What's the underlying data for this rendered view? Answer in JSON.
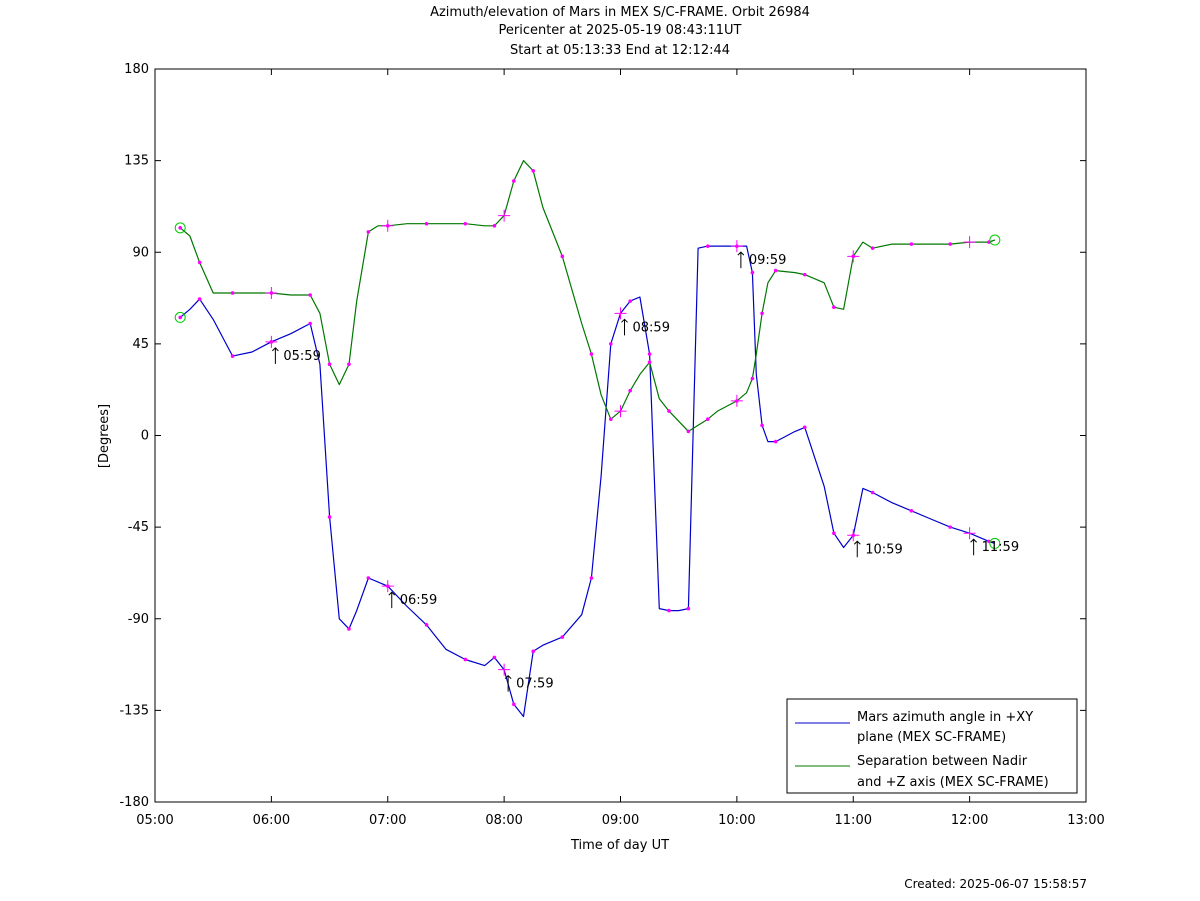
{
  "header": {
    "title": "Azimuth/elevation of Mars in MEX S/C-FRAME.  Orbit 26984",
    "subtitle1": "Pericenter at 2025-05-19 08:43:11UT",
    "subtitle2": "Start at 05:13:33 End at 12:12:44"
  },
  "footer": {
    "created": "Created: 2025-06-07 15:58:57"
  },
  "chart_data": {
    "type": "line",
    "xlabel": "Time of day UT",
    "ylabel": "[Degrees]",
    "xlim": [
      "05:00",
      "13:00"
    ],
    "ylim": [
      -180,
      180
    ],
    "xticks": [
      "05:00",
      "06:00",
      "07:00",
      "08:00",
      "09:00",
      "10:00",
      "11:00",
      "12:00",
      "13:00"
    ],
    "yticks": [
      180,
      135,
      90,
      45,
      0,
      -45,
      -90,
      -135,
      -180
    ],
    "grid": false,
    "legend_position": "bottom-right",
    "series": [
      {
        "name": "Mars azimuth angle in +XY plane (MEX SC-FRAME)",
        "legend_line1": "Mars azimuth angle in +XY",
        "legend_line2": "plane (MEX SC-FRAME)",
        "color": "#0000cc",
        "x": [
          "05:13",
          "05:18",
          "05:23",
          "05:30",
          "05:40",
          "05:50",
          "06:00",
          "06:10",
          "06:20",
          "06:25",
          "06:30",
          "06:35",
          "06:40",
          "06:44",
          "06:50",
          "06:55",
          "07:00",
          "07:10",
          "07:20",
          "07:30",
          "07:40",
          "07:50",
          "07:55",
          "08:00",
          "08:05",
          "08:10",
          "08:15",
          "08:20",
          "08:30",
          "08:40",
          "08:45",
          "08:50",
          "08:55",
          "09:00",
          "09:05",
          "09:10",
          "09:15",
          "09:20",
          "09:25",
          "09:30",
          "09:35",
          "09:40",
          "09:45",
          "09:50",
          "10:00",
          "10:05",
          "10:08",
          "10:10",
          "10:13",
          "10:16",
          "10:20",
          "10:30",
          "10:35",
          "10:45",
          "10:50",
          "10:55",
          "11:00",
          "11:05",
          "11:10",
          "11:20",
          "11:30",
          "11:40",
          "11:50",
          "12:00",
          "12:10",
          "12:13"
        ],
        "y": [
          58,
          62,
          67,
          57,
          39,
          41,
          46,
          50,
          55,
          35,
          -40,
          -90,
          -95,
          -86,
          -70,
          -72,
          -74,
          -84,
          -93,
          -105,
          -110,
          -113,
          -109,
          -115,
          -132,
          -138,
          -106,
          -103,
          -99,
          -88,
          -70,
          -20,
          45,
          60,
          66,
          68,
          40,
          -85,
          -86,
          -86,
          -85,
          92,
          93,
          93,
          93,
          93,
          80,
          30,
          5,
          -3,
          -3,
          2,
          4,
          -25,
          -48,
          -55,
          -49,
          -26,
          -28,
          -33,
          -37,
          -41,
          -45,
          -48,
          -52,
          -53
        ]
      },
      {
        "name": "Separation between Nadir and +Z axis (MEX SC-FRAME)",
        "legend_line1": "Separation between Nadir",
        "legend_line2": "and +Z axis (MEX SC-FRAME)",
        "color": "#007700",
        "x": [
          "05:13",
          "05:18",
          "05:23",
          "05:30",
          "05:40",
          "05:50",
          "06:00",
          "06:10",
          "06:20",
          "06:25",
          "06:30",
          "06:35",
          "06:40",
          "06:44",
          "06:50",
          "06:55",
          "07:00",
          "07:10",
          "07:20",
          "07:30",
          "07:40",
          "07:50",
          "07:55",
          "08:00",
          "08:05",
          "08:10",
          "08:15",
          "08:20",
          "08:30",
          "08:40",
          "08:45",
          "08:50",
          "08:55",
          "09:00",
          "09:05",
          "09:10",
          "09:15",
          "09:20",
          "09:25",
          "09:30",
          "09:35",
          "09:40",
          "09:45",
          "09:50",
          "10:00",
          "10:05",
          "10:08",
          "10:10",
          "10:13",
          "10:16",
          "10:20",
          "10:30",
          "10:35",
          "10:45",
          "10:50",
          "10:55",
          "11:00",
          "11:05",
          "11:10",
          "11:20",
          "11:30",
          "11:40",
          "11:50",
          "12:00",
          "12:10",
          "12:13"
        ],
        "y": [
          102,
          98,
          85,
          70,
          70,
          70,
          70,
          69,
          69,
          60,
          35,
          25,
          35,
          66,
          100,
          103,
          103,
          104,
          104,
          104,
          104,
          103,
          103,
          108,
          125,
          135,
          130,
          112,
          88,
          55,
          40,
          20,
          8,
          12,
          22,
          30,
          36,
          18,
          12,
          7,
          2,
          5,
          8,
          12,
          17,
          21,
          28,
          40,
          60,
          75,
          81,
          80,
          79,
          75,
          63,
          62,
          88,
          95,
          92,
          94,
          94,
          94,
          94,
          95,
          95,
          96
        ]
      }
    ],
    "time_labels": [
      "05:59",
      "06:59",
      "07:59",
      "08:59",
      "09:59",
      "10:59",
      "11:59"
    ],
    "marker_color": "#ff00ff",
    "endpoint_marker_color": "#00cc00"
  }
}
